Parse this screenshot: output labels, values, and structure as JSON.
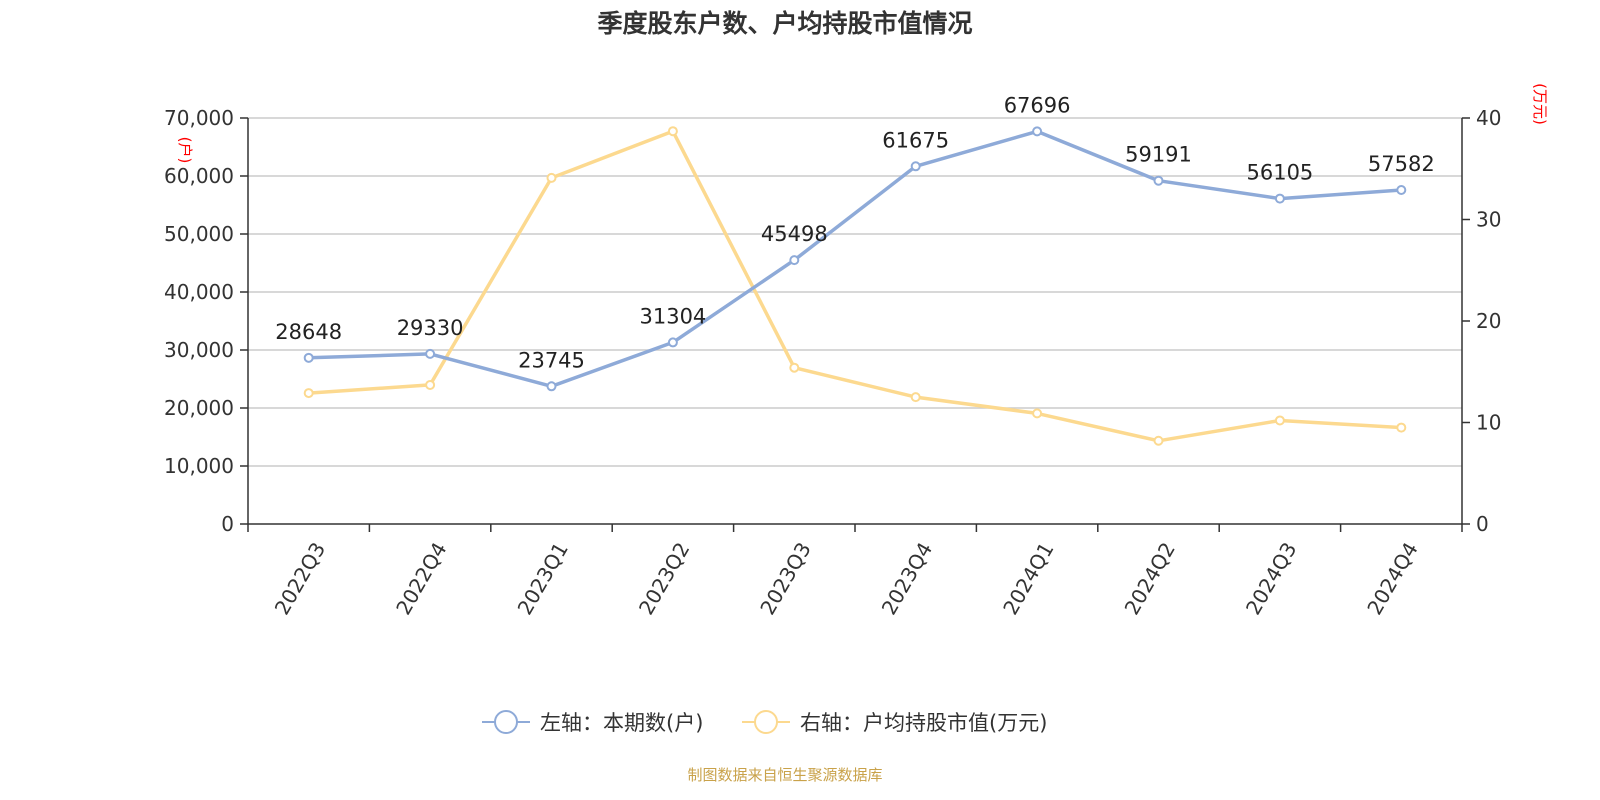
{
  "chart_data": {
    "type": "line",
    "title": "季度股东户数、户均持股市值情况",
    "categories": [
      "2022Q3",
      "2022Q4",
      "2023Q1",
      "2023Q2",
      "2023Q3",
      "2023Q4",
      "2024Q1",
      "2024Q2",
      "2024Q3",
      "2024Q4"
    ],
    "series": [
      {
        "name": "左轴：本期数(户)",
        "axis": "left",
        "color": "#8eaad8",
        "values": [
          28648,
          29330,
          23745,
          31304,
          45498,
          61675,
          67696,
          59191,
          56105,
          57582
        ],
        "labels": [
          "28648",
          "29330",
          "23745",
          "31304",
          "45498",
          "61675",
          "67696",
          "59191",
          "56105",
          "57582"
        ]
      },
      {
        "name": "右轴：户均持股市值(万元)",
        "axis": "right",
        "color": "#fcd98f",
        "values": [
          12.9,
          13.7,
          34.1,
          38.7,
          15.4,
          12.5,
          10.9,
          8.2,
          10.2,
          9.5
        ]
      }
    ],
    "left_axis": {
      "unit": "(户)",
      "ylim": [
        0,
        70000
      ],
      "ticks": [
        0,
        10000,
        20000,
        30000,
        40000,
        50000,
        60000,
        70000
      ],
      "tick_labels": [
        "0",
        "10,000",
        "20,000",
        "30,000",
        "40,000",
        "50,000",
        "60,000",
        "70,000"
      ]
    },
    "right_axis": {
      "unit": "(万元)",
      "ylim": [
        0,
        40
      ],
      "ticks": [
        0,
        10,
        20,
        30,
        40
      ],
      "tick_labels": [
        "0",
        "10",
        "20",
        "30",
        "40"
      ]
    },
    "grid": true,
    "legend_position": "bottom-center",
    "source": "制图数据来自恒生聚源数据库"
  }
}
